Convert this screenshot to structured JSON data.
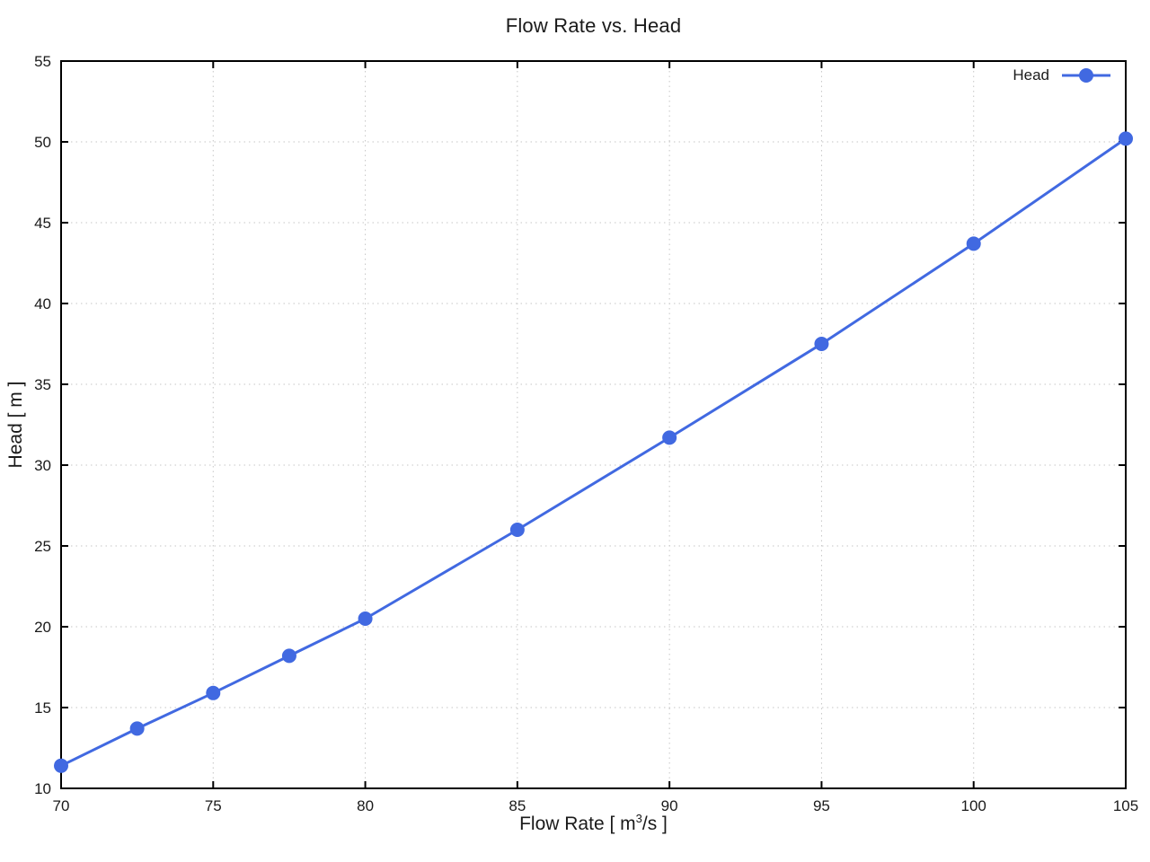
{
  "chart_data": {
    "type": "line",
    "title": "Flow Rate vs. Head",
    "xlabel_prefix": "Flow Rate [ m",
    "xlabel_sup": "3",
    "xlabel_suffix": "/s ]",
    "ylabel": "Head [ m ]",
    "xlim": [
      70,
      105
    ],
    "ylim": [
      10,
      55
    ],
    "xticks": [
      70,
      75,
      80,
      85,
      90,
      95,
      100,
      105
    ],
    "yticks": [
      10,
      15,
      20,
      25,
      30,
      35,
      40,
      45,
      50,
      55
    ],
    "grid": "dotted",
    "legend_position": "top-right-inside",
    "series": [
      {
        "name": "Head",
        "x": [
          70,
          72.5,
          75,
          77.5,
          80,
          85,
          90,
          95,
          100,
          105
        ],
        "y": [
          11.4,
          13.7,
          15.9,
          18.2,
          20.5,
          26.0,
          31.7,
          37.5,
          43.7,
          50.2
        ],
        "color": "#4169E1",
        "marker": "circle",
        "marker_radius": 8,
        "line_width": 3
      }
    ]
  },
  "colors": {
    "accent": "#4169E1",
    "grid": "#c6c6c6",
    "axis": "#000000",
    "text": "#1a1a1a",
    "background": "#ffffff"
  }
}
